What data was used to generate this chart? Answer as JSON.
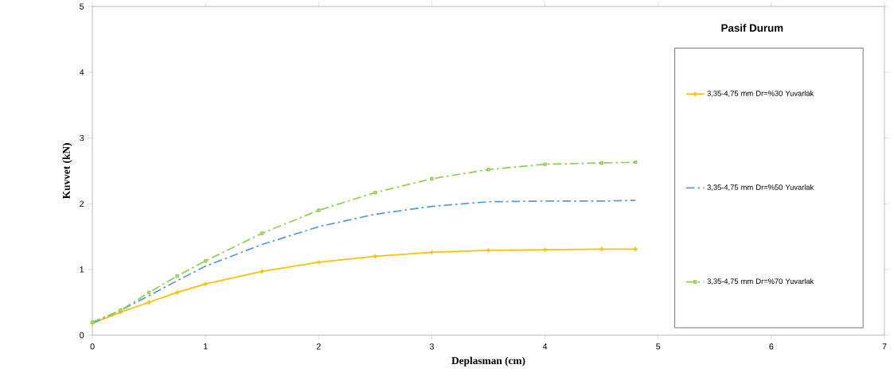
{
  "chart_data": {
    "type": "line",
    "xlabel": "Deplasman (cm)",
    "ylabel": "Kuvvet (kN)",
    "legend_title": "Pasif Durum",
    "legend": "right",
    "grid": false,
    "xlim": [
      0,
      7
    ],
    "xticks": [
      0,
      1,
      2,
      3,
      4,
      5,
      6,
      7
    ],
    "ylim": [
      0,
      5
    ],
    "yticks": [
      0,
      1,
      2,
      3,
      4,
      5
    ],
    "x": [
      0,
      0.25,
      0.5,
      0.75,
      1,
      1.5,
      2,
      2.5,
      3,
      3.5,
      4,
      4.5,
      4.8
    ],
    "series": [
      {
        "name": "3,35-4,75 mm Dr=%30 Yuvarlak",
        "color": "#ffc000",
        "marker": "cross",
        "line_style": "solid",
        "values": [
          0.18,
          0.35,
          0.5,
          0.65,
          0.78,
          0.97,
          1.11,
          1.2,
          1.26,
          1.29,
          1.3,
          1.31,
          1.31
        ]
      },
      {
        "name": "3,35-4,75 mm Dr=%50 Yuvarlak",
        "color": "#5b9bd5",
        "marker": "none",
        "line_style": "dashed",
        "values": [
          0.18,
          0.38,
          0.6,
          0.83,
          1.05,
          1.38,
          1.65,
          1.84,
          1.96,
          2.03,
          2.04,
          2.04,
          2.05
        ]
      },
      {
        "name": "3,35-4,75 mm Dr=%70 Yuvarlak",
        "color": "#92d050",
        "marker": "square",
        "line_style": "dashed",
        "values": [
          0.2,
          0.38,
          0.65,
          0.9,
          1.13,
          1.55,
          1.9,
          2.17,
          2.38,
          2.52,
          2.6,
          2.62,
          2.63
        ]
      }
    ]
  }
}
